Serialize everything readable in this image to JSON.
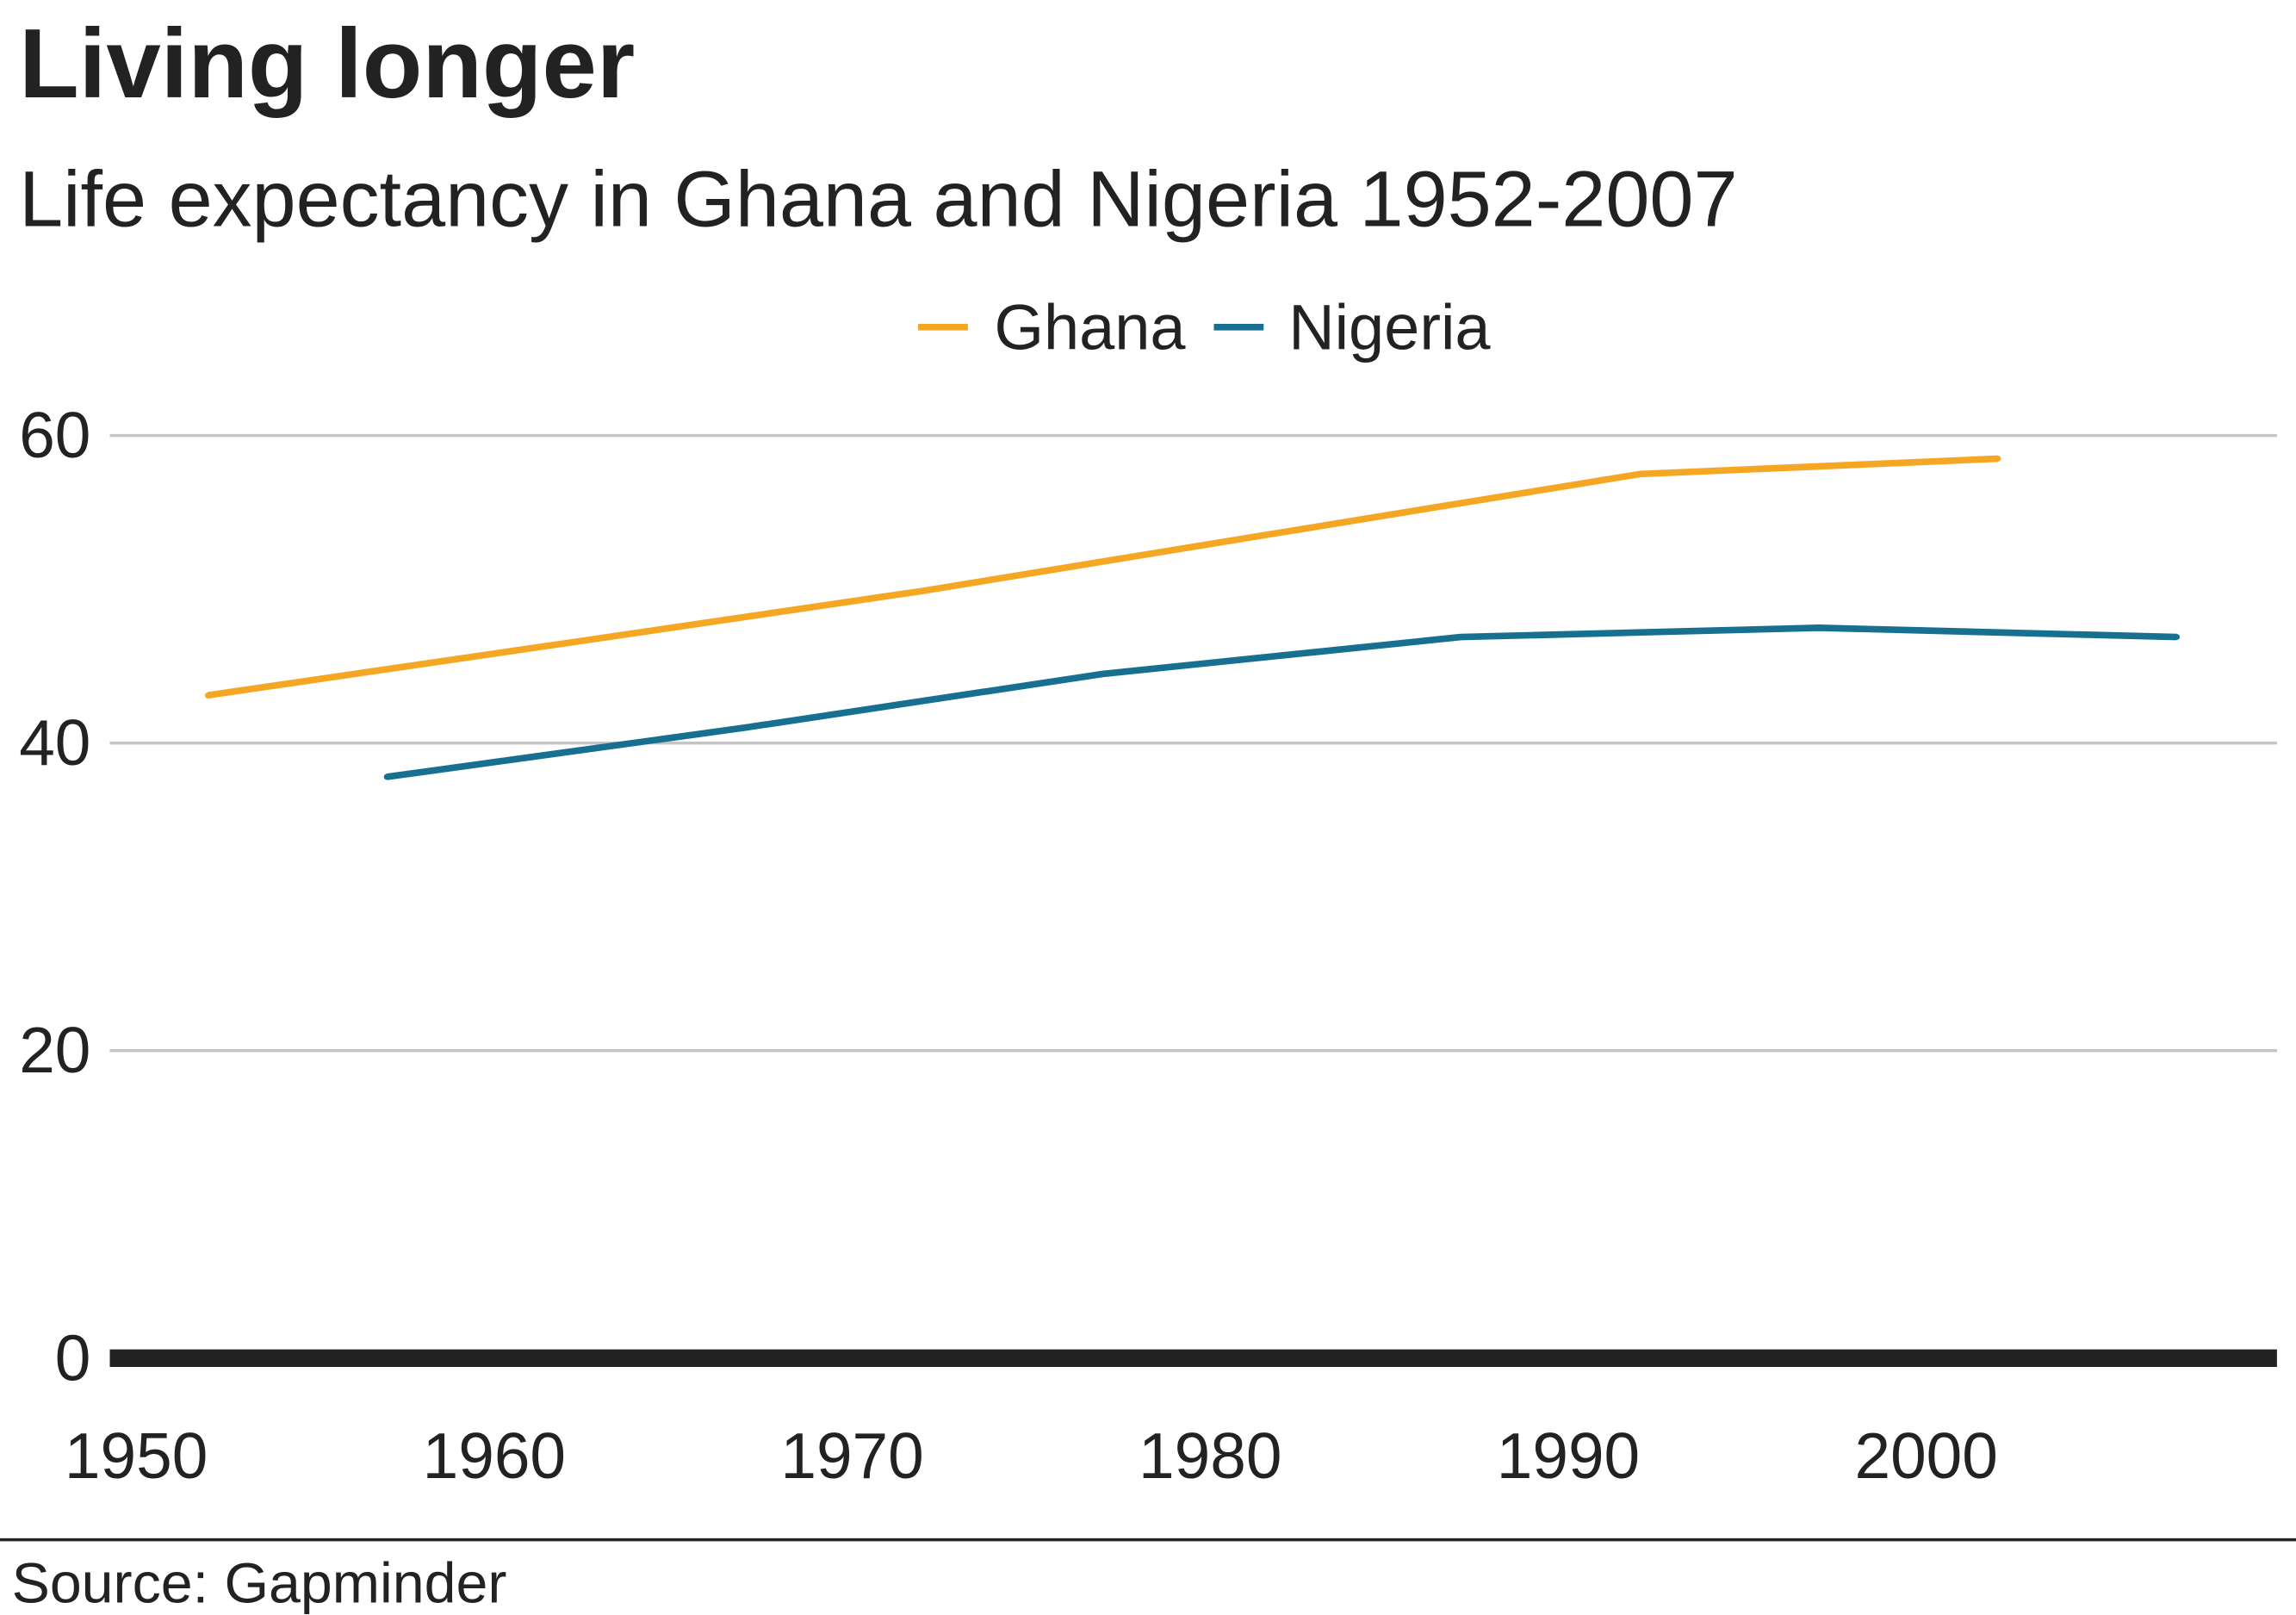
{
  "source": "Source: Gapminder",
  "chart_data": {
    "type": "line",
    "title": "Living longer",
    "subtitle": "Life expectancy in Ghana and Nigeria 1952-2007",
    "xlabel": "",
    "ylabel": "",
    "xlim": [
      1950,
      2010
    ],
    "ylim": [
      0,
      60
    ],
    "x_ticks": [
      1950,
      1960,
      1970,
      1980,
      1990,
      2000
    ],
    "y_ticks": [
      0,
      20,
      40,
      60
    ],
    "grid": true,
    "legend": "top-center",
    "series": [
      {
        "name": "Ghana",
        "color": "#F5A623",
        "x": [
          1952,
          1962,
          1972,
          1982,
          1992,
          2002
        ],
        "y": [
          43.1,
          46.5,
          49.9,
          53.7,
          57.5,
          58.5
        ]
      },
      {
        "name": "Nigeria",
        "color": "#17708F",
        "x": [
          1957,
          1967,
          1977,
          1987,
          1997,
          2007
        ],
        "y": [
          37.8,
          41.0,
          44.5,
          46.9,
          47.5,
          46.9
        ]
      }
    ]
  }
}
